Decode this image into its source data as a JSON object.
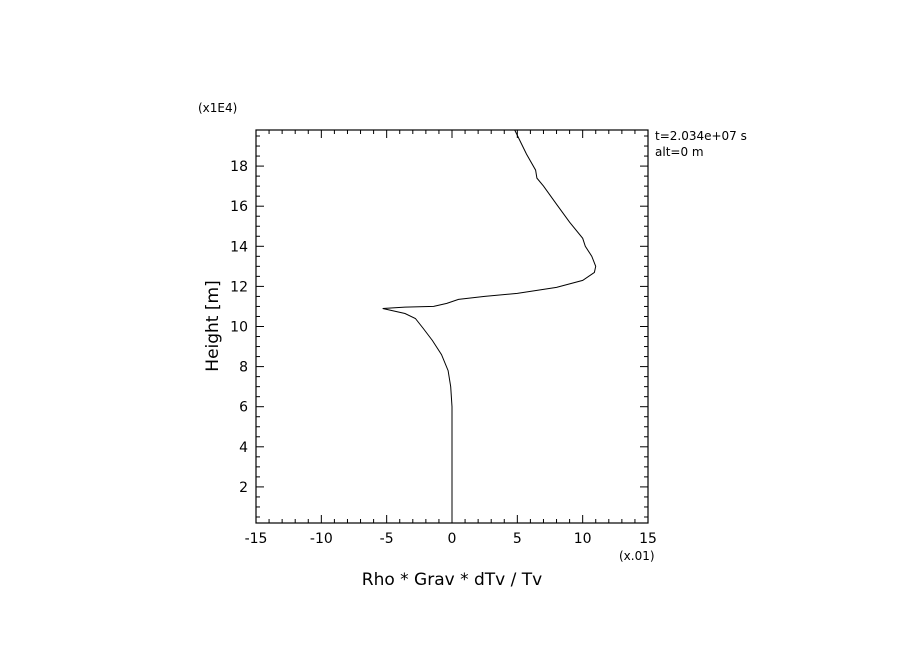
{
  "chart_data": {
    "type": "line",
    "title": "",
    "xlabel": "Rho * Grav * dTv / Tv",
    "ylabel": "Height [m]",
    "x_multiplier": "(x.01)",
    "y_multiplier": "(x1E4)",
    "xlim": [
      -15,
      15
    ],
    "ylim": [
      0.2,
      19.8
    ],
    "x_ticks": [
      -15,
      -10,
      -5,
      0,
      5,
      10,
      15
    ],
    "x_tick_labels": [
      "-15",
      "-10",
      "-5",
      "0",
      "5",
      "10",
      "15"
    ],
    "y_ticks": [
      2,
      4,
      6,
      8,
      10,
      12,
      14,
      16,
      18
    ],
    "y_tick_labels": [
      "2",
      "4",
      "6",
      "8",
      "10",
      "12",
      "14",
      "16",
      "18"
    ],
    "grid": false,
    "annotations": [
      "t=2.034e+07 s",
      "alt=0 m"
    ],
    "series": [
      {
        "color": "#000000",
        "points": [
          [
            0.0,
            0.2
          ],
          [
            0.0,
            2.0
          ],
          [
            0.0,
            4.0
          ],
          [
            0.0,
            6.0
          ],
          [
            -0.1,
            7.0
          ],
          [
            -0.3,
            7.8
          ],
          [
            -0.8,
            8.6
          ],
          [
            -1.5,
            9.3
          ],
          [
            -2.2,
            9.9
          ],
          [
            -2.8,
            10.4
          ],
          [
            -3.6,
            10.65
          ],
          [
            -5.3,
            10.9
          ],
          [
            -3.6,
            10.97
          ],
          [
            -1.4,
            11.0
          ],
          [
            -0.4,
            11.15
          ],
          [
            0.5,
            11.35
          ],
          [
            2.5,
            11.5
          ],
          [
            5.0,
            11.65
          ],
          [
            8.0,
            11.95
          ],
          [
            10.0,
            12.3
          ],
          [
            10.9,
            12.7
          ],
          [
            11.0,
            13.0
          ],
          [
            10.7,
            13.5
          ],
          [
            10.2,
            14.0
          ],
          [
            10.0,
            14.4
          ],
          [
            9.0,
            15.2
          ],
          [
            8.0,
            16.1
          ],
          [
            7.0,
            17.0
          ],
          [
            6.5,
            17.4
          ],
          [
            6.4,
            17.8
          ],
          [
            5.7,
            18.6
          ],
          [
            4.8,
            19.8
          ]
        ]
      }
    ]
  }
}
